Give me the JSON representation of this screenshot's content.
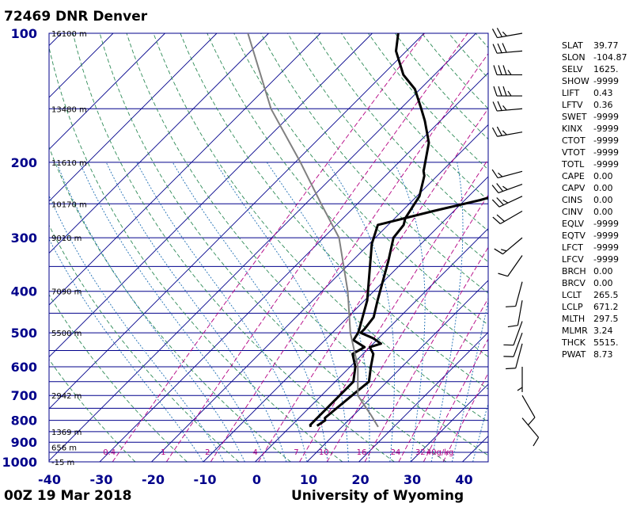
{
  "header": {
    "station": "72469 DNR Denver",
    "time": "00Z 19 Mar 2018",
    "credit": "University of Wyoming"
  },
  "chart_data": {
    "type": "skew-t log-p",
    "xlabel": "",
    "ylabel": "",
    "temperature_ticks": [
      "-40",
      "-30",
      "-20",
      "-10",
      "0",
      "10",
      "20",
      "30",
      "40"
    ],
    "temperature_values": [
      -40,
      -30,
      -20,
      -10,
      0,
      10,
      20,
      30,
      40
    ],
    "xlim": [
      -40,
      45
    ],
    "pressure_ticks": [
      "100",
      "200",
      "300",
      "400",
      "500",
      "600",
      "700",
      "800",
      "900",
      "1000"
    ],
    "pressure_values": [
      100,
      200,
      300,
      400,
      500,
      600,
      700,
      800,
      900,
      1000
    ],
    "ylim": [
      100,
      1000
    ],
    "height_labels": [
      {
        "p": 100,
        "label": "16100 m"
      },
      {
        "p": 150,
        "label": "13480 m"
      },
      {
        "p": 200,
        "label": "11610 m"
      },
      {
        "p": 250,
        "label": "10170 m"
      },
      {
        "p": 300,
        "label": "9010 m"
      },
      {
        "p": 400,
        "label": "7090 m"
      },
      {
        "p": 500,
        "label": "5500 m"
      },
      {
        "p": 700,
        "label": "2942 m"
      },
      {
        "p": 850,
        "label": "1369 m"
      },
      {
        "p": 925,
        "label": "656 m"
      },
      {
        "p": 1000,
        "label": "-15 m"
      }
    ],
    "mixing_ratio_labels": [
      "0.4",
      "1",
      "2",
      "4",
      "7",
      "10",
      "16",
      "24",
      "32",
      "40g/kg"
    ],
    "mixing_ratio_values": [
      0.4,
      1,
      2,
      4,
      7,
      10,
      16,
      24,
      32,
      40
    ],
    "colors": {
      "isobar": "#00008b",
      "isotherm": "#00008b",
      "dry_adiabat": "#2e8b57",
      "moist_adiabat": "#1e6eb4",
      "mixing_ratio": "#b40082",
      "sounding": "#000000",
      "parcel": "#808080",
      "axis_text": "#00008b"
    },
    "series": [
      {
        "name": "",
        "points": [
          [
            824,
            5
          ],
          [
            800,
            5.5
          ],
          [
            790,
            5
          ],
          [
            690,
            6
          ],
          [
            650,
            6.5
          ],
          [
            600,
            4
          ],
          [
            560,
            2
          ],
          [
            540,
            0
          ],
          [
            530,
            1.5
          ],
          [
            515,
            -1
          ],
          [
            500,
            -4.5
          ],
          [
            490,
            -4.5
          ],
          [
            460,
            -5
          ],
          [
            420,
            -7.5
          ],
          [
            340,
            -13
          ],
          [
            300,
            -16.5
          ],
          [
            280,
            -17
          ],
          [
            270,
            -18
          ],
          [
            240,
            -19.5
          ],
          [
            215,
            -22.5
          ],
          [
            210,
            -23.5
          ],
          [
            180,
            -28
          ],
          [
            160,
            -33
          ],
          [
            150,
            -36
          ],
          [
            135,
            -41
          ],
          [
            125,
            -46
          ],
          [
            110,
            -52
          ],
          [
            100,
            -55
          ]
        ]
      },
      {
        "name": "",
        "points": [
          [
            829,
            4
          ],
          [
            820,
            3.5
          ],
          [
            680,
            3.5
          ],
          [
            650,
            3.5
          ],
          [
            600,
            1
          ],
          [
            560,
            -2
          ],
          [
            540,
            -1
          ],
          [
            520,
            -4.5
          ],
          [
            500,
            -5
          ],
          [
            490,
            -5.5
          ],
          [
            420,
            -9.5
          ],
          [
            310,
            -19.5
          ],
          [
            280,
            -22
          ],
          [
            260,
            -14
          ],
          [
            245,
            -7
          ],
          [
            200,
            11
          ],
          [
            170,
            10
          ],
          [
            160,
            10
          ],
          [
            140,
            10
          ],
          [
            125,
            10
          ],
          [
            110,
            10
          ],
          [
            100,
            7
          ]
        ]
      },
      {
        "name": "",
        "points": [
          [
            829,
            17
          ],
          [
            780,
            13.5
          ],
          [
            700,
            7
          ],
          [
            600,
            1.5
          ],
          [
            500,
            -6.5
          ],
          [
            400,
            -15
          ],
          [
            300,
            -27
          ],
          [
            250,
            -37
          ],
          [
            200,
            -49
          ],
          [
            150,
            -65
          ],
          [
            100,
            -84
          ]
        ]
      }
    ],
    "wind_barbs": [
      {
        "p": 100,
        "dir": 260,
        "kt": 25
      },
      {
        "p": 110,
        "dir": 265,
        "kt": 30
      },
      {
        "p": 125,
        "dir": 270,
        "kt": 35
      },
      {
        "p": 140,
        "dir": 270,
        "kt": 35
      },
      {
        "p": 150,
        "dir": 265,
        "kt": 25
      },
      {
        "p": 170,
        "dir": 260,
        "kt": 25
      },
      {
        "p": 210,
        "dir": 255,
        "kt": 15
      },
      {
        "p": 225,
        "dir": 250,
        "kt": 25
      },
      {
        "p": 240,
        "dir": 245,
        "kt": 25
      },
      {
        "p": 260,
        "dir": 240,
        "kt": 20
      },
      {
        "p": 300,
        "dir": 230,
        "kt": 15
      },
      {
        "p": 330,
        "dir": 215,
        "kt": 10
      },
      {
        "p": 380,
        "dir": 195,
        "kt": 10
      },
      {
        "p": 420,
        "dir": 190,
        "kt": 10
      },
      {
        "p": 470,
        "dir": 200,
        "kt": 10
      },
      {
        "p": 500,
        "dir": 200,
        "kt": 10
      },
      {
        "p": 530,
        "dir": 195,
        "kt": 10
      },
      {
        "p": 600,
        "dir": 180,
        "kt": 5
      },
      {
        "p": 700,
        "dir": 150,
        "kt": 10
      },
      {
        "p": 790,
        "dir": 140,
        "kt": 10
      }
    ]
  },
  "indices": [
    {
      "name": "SLAT",
      "value": "39.77"
    },
    {
      "name": "SLON",
      "value": "-104.87"
    },
    {
      "name": "SELV",
      "value": "1625."
    },
    {
      "name": "SHOW",
      "value": "-9999"
    },
    {
      "name": "LIFT",
      "value": "0.43"
    },
    {
      "name": "LFTV",
      "value": "0.36"
    },
    {
      "name": "SWET",
      "value": "-9999"
    },
    {
      "name": "KINX",
      "value": "-9999"
    },
    {
      "name": "CTOT",
      "value": "-9999"
    },
    {
      "name": "VTOT",
      "value": "-9999"
    },
    {
      "name": "TOTL",
      "value": "-9999"
    },
    {
      "name": "CAPE",
      "value": "0.00"
    },
    {
      "name": "CAPV",
      "value": "0.00"
    },
    {
      "name": "CINS",
      "value": "0.00"
    },
    {
      "name": "CINV",
      "value": "0.00"
    },
    {
      "name": "EQLV",
      "value": "-9999"
    },
    {
      "name": "EQTV",
      "value": "-9999"
    },
    {
      "name": "LFCT",
      "value": "-9999"
    },
    {
      "name": "LFCV",
      "value": "-9999"
    },
    {
      "name": "BRCH",
      "value": "0.00"
    },
    {
      "name": "BRCV",
      "value": "0.00"
    },
    {
      "name": "LCLT",
      "value": "265.5"
    },
    {
      "name": "LCLP",
      "value": "671.2"
    },
    {
      "name": "MLTH",
      "value": "297.5"
    },
    {
      "name": "MLMR",
      "value": "3.24"
    },
    {
      "name": "THCK",
      "value": "5515."
    },
    {
      "name": "PWAT",
      "value": "8.73"
    }
  ]
}
